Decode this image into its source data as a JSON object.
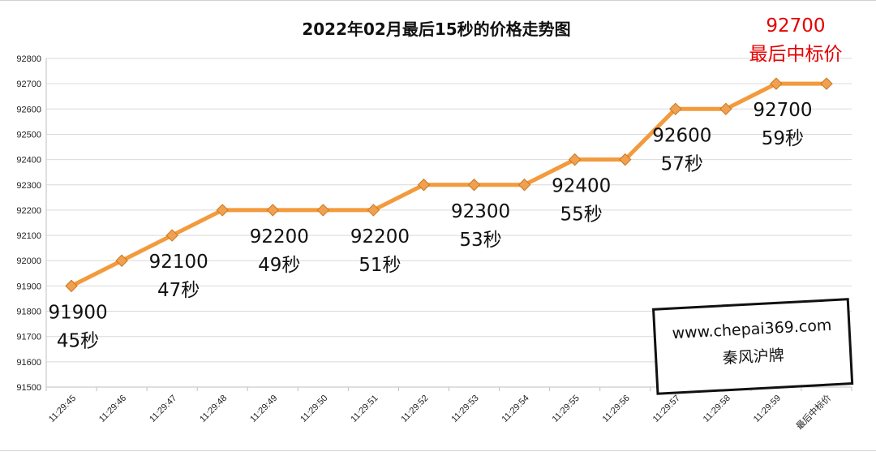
{
  "chart_data": {
    "type": "line",
    "title": "2022年02月最后15秒的价格走势图",
    "categories": [
      "11:29:45",
      "11:29:46",
      "11:29:47",
      "11:29:48",
      "11:29:49",
      "11:29:50",
      "11:29:51",
      "11:29:52",
      "11:29:53",
      "11:29:54",
      "11:29:55",
      "11:29:56",
      "11:29:57",
      "11:29:58",
      "11:29:59",
      "最后中标价"
    ],
    "values": [
      91900,
      92000,
      92100,
      92200,
      92200,
      92200,
      92200,
      92300,
      92300,
      92300,
      92400,
      92400,
      92600,
      92600,
      92700,
      92700
    ],
    "ylim": [
      91500,
      92800
    ],
    "yticks": [
      91500,
      91600,
      91700,
      91800,
      91900,
      92000,
      92100,
      92200,
      92300,
      92400,
      92500,
      92600,
      92700,
      92800
    ],
    "grid": true,
    "line_color": "#f39a3c",
    "marker_color": "#f0a050",
    "annotations": [
      {
        "index": 0,
        "lines": [
          "91900",
          "45秒"
        ]
      },
      {
        "index": 2,
        "lines": [
          "92100",
          "47秒"
        ]
      },
      {
        "index": 4,
        "lines": [
          "92200",
          "49秒"
        ]
      },
      {
        "index": 6,
        "lines": [
          "92200",
          "51秒"
        ]
      },
      {
        "index": 8,
        "lines": [
          "92300",
          "53秒"
        ]
      },
      {
        "index": 10,
        "lines": [
          "92400",
          "55秒"
        ]
      },
      {
        "index": 12,
        "lines": [
          "92600",
          "57秒"
        ]
      },
      {
        "index": 14,
        "lines": [
          "92700",
          "59秒"
        ]
      }
    ],
    "final_annotation": {
      "lines": [
        "92700",
        "最后中标价"
      ],
      "color": "#e60000"
    }
  },
  "watermark": {
    "url": "www.chepai369.com",
    "brand": "秦风沪牌"
  }
}
